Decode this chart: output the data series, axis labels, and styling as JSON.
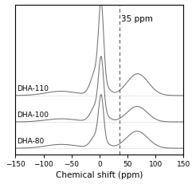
{
  "title": "",
  "xlabel": "Chemical shift (ppm)",
  "xlim": [
    -150,
    150
  ],
  "xticks": [
    -150,
    -100,
    -50,
    0,
    50,
    100,
    150
  ],
  "vline_x": 35,
  "vline_label": "35 ppm",
  "spectra": [
    {
      "label": "DHA-110"
    },
    {
      "label": "DHA-100"
    },
    {
      "label": "DHA-80"
    }
  ],
  "line_color": "#707070",
  "baseline_color": "#aaaaaa",
  "vline_color": "#555555",
  "background": "#ffffff",
  "label_color": "#000000",
  "frame_color": "#000000"
}
